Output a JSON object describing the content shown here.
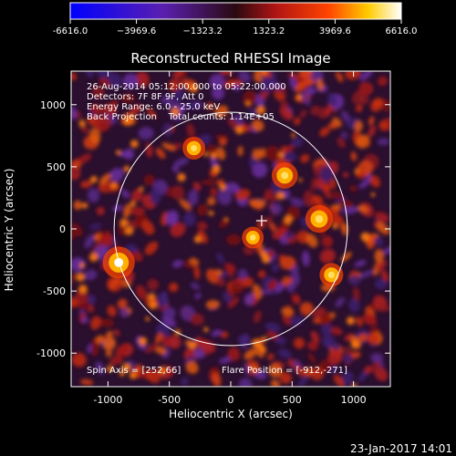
{
  "chart_data": {
    "type": "heatmap",
    "title": "Reconstructed RHESSI Image",
    "xlabel": "Heliocentric X (arcsec)",
    "ylabel": "Heliocentric Y (arcsec)",
    "xlim": [
      -1300,
      1300
    ],
    "ylim": [
      -1270,
      1270
    ],
    "x_ticks": [
      -1000,
      -500,
      0,
      500,
      1000
    ],
    "x_tick_labels": [
      "-1000",
      "-500",
      "0",
      "500",
      "1000"
    ],
    "y_ticks": [
      -1000,
      -500,
      0,
      500,
      1000
    ],
    "y_tick_labels": [
      "-1000",
      "-500",
      "0",
      "500",
      "1000"
    ],
    "colorbar": {
      "min": -6616.0,
      "max": 6616.0,
      "tick_values": [
        -6616.0,
        -3969.6,
        -1323.2,
        1323.2,
        3969.6,
        6616.0
      ],
      "tick_labels": [
        "-6616.0",
        "−3969.6",
        "−1323.2",
        "1323.2",
        "3969.6",
        "6616.0"
      ]
    },
    "info_lines": [
      "26-Aug-2014 05:12:00.000 to 05:22:00.000",
      "Detectors: 7F 8F 9F, Att 0",
      "Energy Range: 6.0 - 25.0 keV",
      "Back Projection    Total counts: 1.14E+05"
    ],
    "spin_axis_text": "Spin Axis = [252,66]",
    "flare_position_text": "Flare Position = [-912,-271]",
    "spin_axis": [
      252,
      66
    ],
    "flare_position": [
      -912,
      -271
    ],
    "solar_limb_radius": 950,
    "bright_sources": [
      {
        "x": -912,
        "y": -271,
        "value": 6616
      },
      {
        "x": 720,
        "y": 80,
        "value": 5200
      },
      {
        "x": 440,
        "y": 430,
        "value": 4700
      },
      {
        "x": 820,
        "y": -370,
        "value": 3900
      },
      {
        "x": -300,
        "y": 650,
        "value": 3600
      },
      {
        "x": 180,
        "y": -70,
        "value": 3300
      }
    ],
    "grid": false
  },
  "footer": {
    "date": "23-Jan-2017 14:01"
  }
}
